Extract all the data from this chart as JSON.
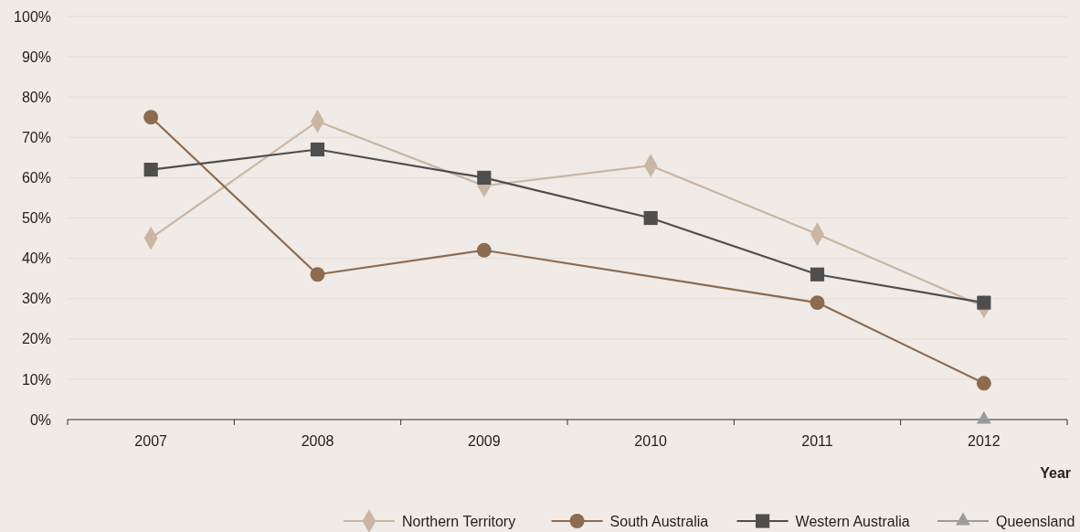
{
  "chart_data": {
    "type": "line",
    "xlabel": "Year",
    "categories": [
      "2007",
      "2008",
      "2009",
      "2010",
      "2011",
      "2012"
    ],
    "series": [
      {
        "name": "Northern Territory",
        "color": "#c9b6a3",
        "marker": "diamond",
        "values": [
          45,
          74,
          58,
          63,
          46,
          28
        ]
      },
      {
        "name": "South Australia",
        "color": "#8c6b50",
        "marker": "circle",
        "values": [
          75,
          36,
          42,
          null,
          29,
          9
        ]
      },
      {
        "name": "Western Australia",
        "color": "#4e4e4e",
        "marker": "square",
        "values": [
          62,
          67,
          60,
          50,
          36,
          29
        ]
      },
      {
        "name": "Queensland",
        "color": "#9b9b9b",
        "marker": "triangle",
        "values": [
          null,
          null,
          null,
          null,
          null,
          0
        ]
      }
    ],
    "ylim": [
      0,
      100
    ],
    "yticks": [
      {
        "value": 0,
        "label": "0%"
      },
      {
        "value": 10,
        "label": "10%"
      },
      {
        "value": 20,
        "label": "20%"
      },
      {
        "value": 30,
        "label": "30%"
      },
      {
        "value": 40,
        "label": "40%"
      },
      {
        "value": 50,
        "label": "50%"
      },
      {
        "value": 60,
        "label": "60%"
      },
      {
        "value": 70,
        "label": "70%"
      },
      {
        "value": 80,
        "label": "80%"
      },
      {
        "value": 90,
        "label": "90%"
      },
      {
        "value": 100,
        "label": "100%"
      }
    ],
    "grid": "y",
    "legend": "bottom right"
  }
}
